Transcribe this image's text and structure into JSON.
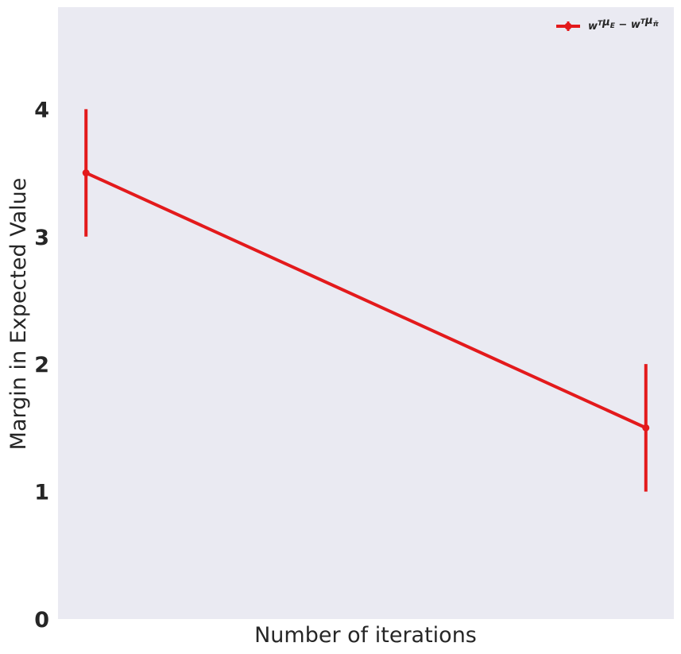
{
  "chart_data": {
    "type": "line",
    "title": "",
    "xlabel": "Number of iterations",
    "ylabel": "Margin in Expected Value",
    "x": [
      0,
      1
    ],
    "series": [
      {
        "name": "w^T μ_E − w^T μ_π̃",
        "legend_main": "w",
        "legend_parts": [
          {
            "base": "w",
            "sup": "T",
            "sub": ""
          },
          {
            "base": "μ",
            "sup": "",
            "sub": "E"
          },
          {
            "base": " − w",
            "sup": "T",
            "sub": ""
          },
          {
            "base": "μ",
            "sup": "",
            "sub": "π̃"
          }
        ],
        "values": [
          3.5,
          1.5
        ],
        "error": [
          0.5,
          0.5
        ],
        "color": "#e31a1c"
      }
    ],
    "xlim": [
      -0.05,
      1.05
    ],
    "ylim": [
      0,
      4.8
    ],
    "yticks": [
      "0",
      "1",
      "2",
      "3",
      "4"
    ],
    "grid": false,
    "legend_position": "top-right",
    "background": "#eaeaf2"
  }
}
